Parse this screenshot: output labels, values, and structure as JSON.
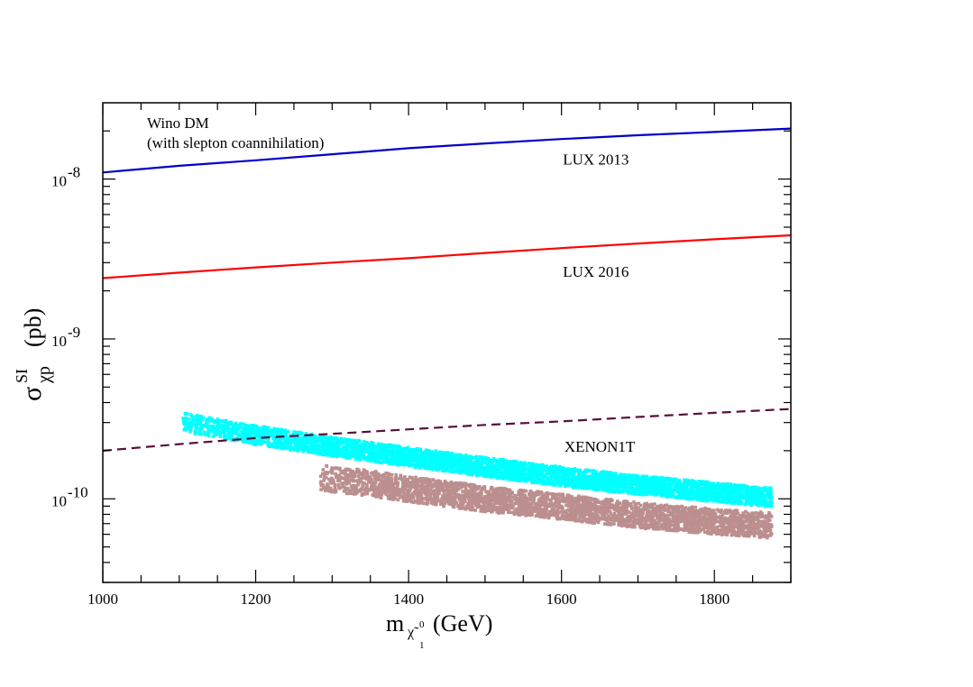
{
  "chart_data": {
    "type": "line",
    "title": "",
    "x": {
      "min": 1000,
      "max": 1900,
      "ticks": [
        1000,
        1200,
        1400,
        1600,
        1800
      ],
      "tick_labels": [
        "1000",
        "1200",
        "1400",
        "1600",
        "1800"
      ]
    },
    "y": {
      "scale": "log",
      "min": 3e-11,
      "max": 3e-08,
      "ticks": [
        1e-10,
        1e-09,
        1e-08
      ],
      "tick_labels": [
        {
          "base": "10",
          "exp": "-10"
        },
        {
          "base": "10",
          "exp": "-9"
        },
        {
          "base": "10",
          "exp": "-8"
        }
      ]
    },
    "xlabel": {
      "main": "m",
      "sub": "χ̃",
      "sub_sup": "0",
      "sub_sub": "1",
      "unit": "(GeV)"
    },
    "ylabel": {
      "main": "σ",
      "sup": "SI",
      "sub": "χp",
      "unit": "(pb)"
    },
    "annotations": [
      {
        "id": "wino-line1",
        "text": "Wino DM"
      },
      {
        "id": "wino-line2",
        "text": "(with slepton coannihilation)"
      }
    ],
    "series": [
      {
        "name": "LUX 2013",
        "kind": "line",
        "color": "#0000cc",
        "dash": "solid",
        "points": [
          [
            1000,
            1.1e-08
          ],
          [
            1100,
            1.21e-08
          ],
          [
            1200,
            1.31e-08
          ],
          [
            1300,
            1.43e-08
          ],
          [
            1400,
            1.56e-08
          ],
          [
            1500,
            1.67e-08
          ],
          [
            1600,
            1.78e-08
          ],
          [
            1700,
            1.88e-08
          ],
          [
            1800,
            1.97e-08
          ],
          [
            1900,
            2.07e-08
          ]
        ]
      },
      {
        "name": "LUX 2016",
        "kind": "line",
        "color": "#ff0000",
        "dash": "solid",
        "points": [
          [
            1000,
            2.4e-09
          ],
          [
            1100,
            2.6e-09
          ],
          [
            1200,
            2.8e-09
          ],
          [
            1300,
            3e-09
          ],
          [
            1400,
            3.2e-09
          ],
          [
            1500,
            3.45e-09
          ],
          [
            1600,
            3.7e-09
          ],
          [
            1700,
            3.95e-09
          ],
          [
            1800,
            4.2e-09
          ],
          [
            1900,
            4.45e-09
          ]
        ]
      },
      {
        "name": "XENON1T",
        "kind": "line",
        "color": "#5a0f3c",
        "dash": "dashed",
        "points": [
          [
            1000,
            2e-10
          ],
          [
            1100,
            2.2e-10
          ],
          [
            1200,
            2.4e-10
          ],
          [
            1300,
            2.55e-10
          ],
          [
            1400,
            2.72e-10
          ],
          [
            1500,
            2.9e-10
          ],
          [
            1600,
            3.05e-10
          ],
          [
            1700,
            3.25e-10
          ],
          [
            1800,
            3.45e-10
          ],
          [
            1900,
            3.65e-10
          ]
        ]
      },
      {
        "name": "Wino DM scan (upper band)",
        "kind": "scatter",
        "color": "#00ffff",
        "x_range": [
          1105,
          1875
        ],
        "center": [
          [
            1105,
            3e-10
          ],
          [
            1200,
            2.5e-10
          ],
          [
            1300,
            2.12e-10
          ],
          [
            1400,
            1.83e-10
          ],
          [
            1500,
            1.58e-10
          ],
          [
            1600,
            1.38e-10
          ],
          [
            1700,
            1.22e-10
          ],
          [
            1800,
            1.1e-10
          ],
          [
            1875,
            1.02e-10
          ]
        ],
        "width_frac": 0.12
      },
      {
        "name": "Wino DM scan (lower band)",
        "kind": "scatter",
        "color": "#bc8f8f",
        "x_range": [
          1285,
          1875
        ],
        "center": [
          [
            1285,
            1.35e-10
          ],
          [
            1350,
            1.25e-10
          ],
          [
            1400,
            1.15e-10
          ],
          [
            1500,
            1e-10
          ],
          [
            1600,
            8.9e-11
          ],
          [
            1700,
            7.9e-11
          ],
          [
            1800,
            7.2e-11
          ],
          [
            1875,
            6.8e-11
          ]
        ],
        "width_frac": 0.16
      }
    ]
  }
}
